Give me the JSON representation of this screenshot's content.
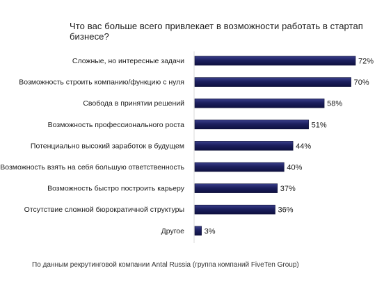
{
  "chart_data": {
    "type": "bar",
    "orientation": "horizontal",
    "title": "Что вас больше всего привлекает в возможности работать в стартап бизнесе?",
    "categories": [
      "Сложные, но интересные задачи",
      "Возможность строить компанию/функцию с нуля",
      "Свобода в принятии решений",
      "Возможность профессионального роста",
      "Потенциально высокий заработок в будущем",
      "Возможность взять на себя большую ответственность",
      "Возможность быстро построить карьеру",
      "Отсутствие сложной бюрократичной структуры",
      "Другое"
    ],
    "values": [
      72,
      70,
      58,
      51,
      44,
      40,
      37,
      36,
      3
    ],
    "value_labels": [
      "72%",
      "70%",
      "58%",
      "51%",
      "44%",
      "40%",
      "37%",
      "36%",
      "3%"
    ],
    "unit": "%",
    "xlim": [
      0,
      72
    ],
    "grid": false,
    "legend": "none",
    "bar_color": "#1c1f5e"
  },
  "source": "По данным рекрутинговой компании Antal Russia (группа компаний FiveTen Group)"
}
